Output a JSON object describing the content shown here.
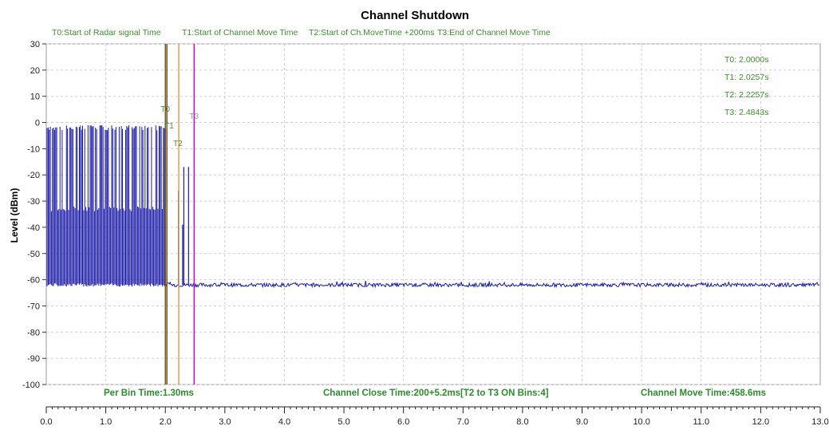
{
  "chart_data": {
    "type": "line",
    "title": "Channel Shutdown",
    "xlabel": "",
    "ylabel": "Level (dBm)",
    "xlim": [
      0,
      13
    ],
    "ylim": [
      -100,
      30
    ],
    "x_ticks": [
      "0.0",
      "1.0",
      "2.0",
      "3.0",
      "4.0",
      "5.0",
      "6.0",
      "7.0",
      "8.0",
      "9.0",
      "10.0",
      "11.0",
      "12.0",
      "13.0"
    ],
    "y_ticks": [
      "30",
      "20",
      "10",
      "0",
      "-10",
      "-20",
      "-30",
      "-40",
      "-50",
      "-60",
      "-70",
      "-80",
      "-90",
      "-100"
    ],
    "grid": true,
    "legend_position": "top",
    "markers": [
      {
        "label": "T0",
        "legend": "T0:Start of Radar signal Time",
        "x": 2.0,
        "color": "#556b2f",
        "readout": "T0: 2.0000s"
      },
      {
        "label": "T1",
        "legend": "T1:Start of Channel Move Time",
        "x": 2.0257,
        "color": "#8b4513",
        "readout": "T1: 2.0257s"
      },
      {
        "label": "T2",
        "legend": "T2:Start of Ch.MoveTime +200ms",
        "x": 2.2257,
        "color": "#e8a040",
        "readout": "T2: 2.2257s"
      },
      {
        "label": "T3",
        "legend": "T3:End of Channel Move Time",
        "x": 2.4843,
        "color": "#cc00cc",
        "readout": "T3: 2.4843s"
      }
    ],
    "series": [
      {
        "color": "#1a1aa8",
        "signal": {
          "start": 0.0,
          "end": 2.0,
          "high": -1,
          "mid": -33,
          "low": -62
        },
        "post_t2_spikes": [
          {
            "x": 2.22,
            "y": -26
          },
          {
            "x": 2.29,
            "y": -39
          },
          {
            "x": 2.31,
            "y": -17
          },
          {
            "x": 2.39,
            "y": -17
          }
        ],
        "noise_floor": -62
      }
    ],
    "annotations": [
      "Per Bin Time:1.30ms",
      "Channel Close Time:200+5.2ms[T2 to T3 ON Bins:4]",
      "Channel Move Time:458.6ms"
    ]
  }
}
